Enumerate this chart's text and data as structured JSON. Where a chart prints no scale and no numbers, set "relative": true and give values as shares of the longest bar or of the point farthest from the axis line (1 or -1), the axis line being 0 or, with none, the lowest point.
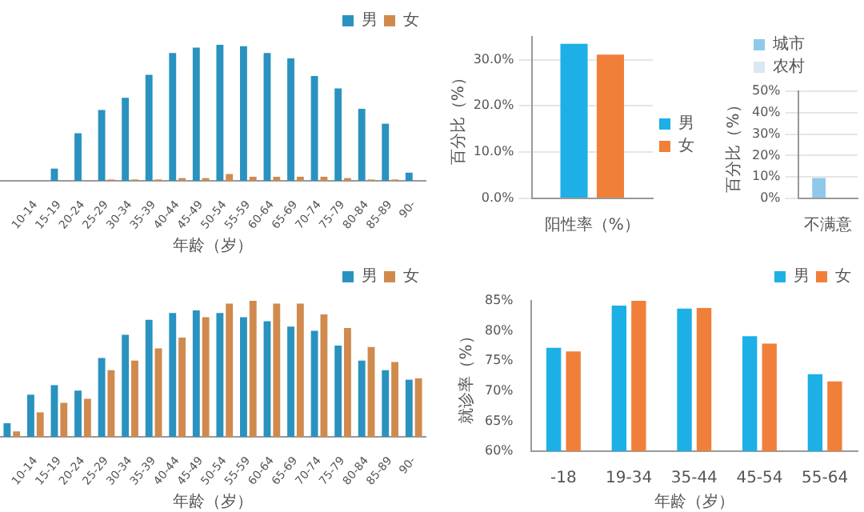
{
  "chart_data": [
    {
      "type": "bar",
      "relative": true,
      "xlabel": "年龄（岁）",
      "legend": "top right",
      "categories": [
        null,
        "10-14",
        "15-19",
        "20-24",
        "25-29",
        "30-34",
        "35-39",
        "40-44",
        "45-49",
        "50-54",
        "55-59",
        "60-64",
        "65-69",
        "70-74",
        "75-79",
        "80-84",
        "85-89",
        "90-"
      ],
      "series": [
        {
          "name": "男",
          "color": "#2a92bf",
          "values": [
            0,
            0,
            0.09,
            0.35,
            0.52,
            0.61,
            0.78,
            0.94,
            0.98,
            1,
            0.99,
            0.94,
            0.9,
            0.77,
            0.68,
            0.53,
            0.42,
            0.06
          ]
        },
        {
          "name": "女",
          "color": "#d08a4e",
          "values": [
            0,
            0,
            0,
            0,
            0.01,
            0.01,
            0.01,
            0.02,
            0.02,
            0.05,
            0.03,
            0.03,
            0.03,
            0.03,
            0.02,
            0.01,
            0.01,
            0
          ]
        }
      ]
    },
    {
      "type": "bar",
      "relative": true,
      "xlabel": "年龄（岁）",
      "legend": "top right",
      "categories": [
        null,
        "10-14",
        "15-19",
        "20-24",
        "25-29",
        "30-34",
        "35-39",
        "40-44",
        "45-49",
        "50-54",
        "55-59",
        "60-64",
        "65-69",
        "70-74",
        "75-79",
        "80-84",
        "85-89",
        "90-"
      ],
      "series": [
        {
          "name": "男",
          "color": "#2a92bf",
          "values": [
            0.1,
            0.31,
            0.38,
            0.34,
            0.58,
            0.75,
            0.86,
            0.91,
            0.93,
            0.91,
            0.88,
            0.85,
            0.81,
            0.78,
            0.67,
            0.56,
            0.49,
            0.42
          ]
        },
        {
          "name": "女",
          "color": "#d08a4e",
          "values": [
            0.04,
            0.18,
            0.25,
            0.28,
            0.49,
            0.56,
            0.65,
            0.73,
            0.88,
            0.98,
            1,
            0.98,
            0.98,
            0.9,
            0.8,
            0.66,
            0.55,
            0.43
          ]
        }
      ]
    },
    {
      "type": "bar",
      "ylabel": "百分比（%）",
      "legend": "right",
      "grid": "y",
      "categories": [
        "阳性率（%）"
      ],
      "ylim": [
        0,
        35
      ],
      "yticks": [
        {
          "value": 0,
          "label": "0.0%"
        },
        {
          "value": 10,
          "label": "10.0%"
        },
        {
          "value": 20,
          "label": "20.0%"
        },
        {
          "value": 30,
          "label": "30.0%"
        }
      ],
      "series": [
        {
          "name": "男",
          "color": "#1cb0e6",
          "values": [
            33.4
          ]
        },
        {
          "name": "女",
          "color": "#f07f3a",
          "values": [
            31.1
          ]
        }
      ]
    },
    {
      "type": "bar",
      "ylabel": "百分比（%）",
      "legend": "top left",
      "grid": "y",
      "categories": [
        "不满意"
      ],
      "ylim": [
        0,
        50
      ],
      "yticks": [
        {
          "value": 0,
          "label": "0%"
        },
        {
          "value": 10,
          "label": "10%"
        },
        {
          "value": 20,
          "label": "20%"
        },
        {
          "value": 30,
          "label": "30%"
        },
        {
          "value": 40,
          "label": "40%"
        },
        {
          "value": 50,
          "label": "50%"
        }
      ],
      "series": [
        {
          "name": "城市",
          "color": "#8ec9ea",
          "values": [
            9.5
          ]
        },
        {
          "name": "农村",
          "color": "#d9e8f2",
          "values": [
            null
          ]
        }
      ]
    },
    {
      "type": "bar",
      "ylabel": "就诊率（%）",
      "xlabel": "年龄（岁）",
      "legend": "top right",
      "categories": [
        "-18",
        "19-34",
        "35-44",
        "45-54",
        "55-64"
      ],
      "ylim": [
        60,
        85
      ],
      "yticks": [
        {
          "value": 60,
          "label": "60%"
        },
        {
          "value": 65,
          "label": "65%"
        },
        {
          "value": 70,
          "label": "70%"
        },
        {
          "value": 75,
          "label": "75%"
        },
        {
          "value": 80,
          "label": "80%"
        },
        {
          "value": 85,
          "label": "85%"
        }
      ],
      "series": [
        {
          "name": "男",
          "color": "#1cb0e6",
          "values": [
            77.2,
            84.2,
            83.7,
            79.1,
            72.8
          ]
        },
        {
          "name": "女",
          "color": "#f07f3a",
          "values": [
            76.6,
            85.0,
            83.8,
            77.9,
            71.6
          ]
        }
      ]
    }
  ]
}
